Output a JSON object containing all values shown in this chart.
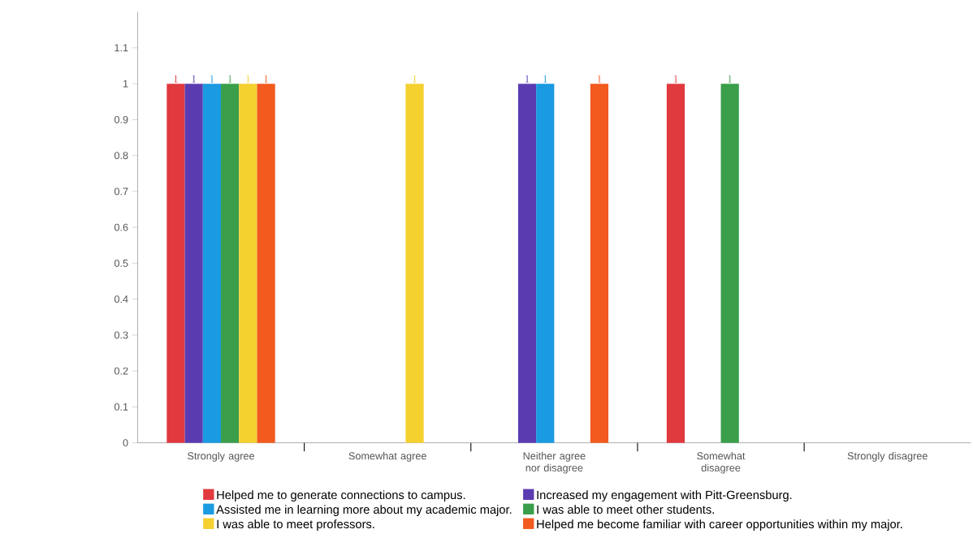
{
  "chart_data": {
    "type": "bar",
    "categories": [
      "Strongly agree",
      "Somewhat agree",
      "Neither agree nor disagree",
      "Somewhat disagree",
      "Strongly disagree"
    ],
    "series": [
      {
        "name": "Helped me to generate connections to campus.",
        "color": "#e0393e",
        "values": [
          1,
          null,
          null,
          1,
          null
        ]
      },
      {
        "name": "Increased my engagement with Pitt-Greensburg.",
        "color": "#5b3cb0",
        "values": [
          1,
          null,
          1,
          null,
          null
        ]
      },
      {
        "name": "Assisted me in learning more about my academic major.",
        "color": "#1a9ae0",
        "values": [
          1,
          null,
          1,
          null,
          null
        ]
      },
      {
        "name": "I was able to meet other students.",
        "color": "#3a9e4a",
        "values": [
          1,
          null,
          null,
          1,
          null
        ]
      },
      {
        "name": "I was able to meet professors.",
        "color": "#f5d130",
        "values": [
          1,
          1,
          null,
          null,
          null
        ]
      },
      {
        "name": "Helped me become familiar with career opportunities within my major.",
        "color": "#f25a1e",
        "values": [
          1,
          null,
          1,
          null,
          null
        ]
      }
    ],
    "ylim": [
      0,
      1.2
    ],
    "yticks": [
      0,
      0.1,
      0.2,
      0.3,
      0.4,
      0.5,
      0.6,
      0.7,
      0.8,
      0.9,
      1,
      1.1
    ],
    "data_labels": true,
    "grid": false,
    "legend": "bottom"
  }
}
